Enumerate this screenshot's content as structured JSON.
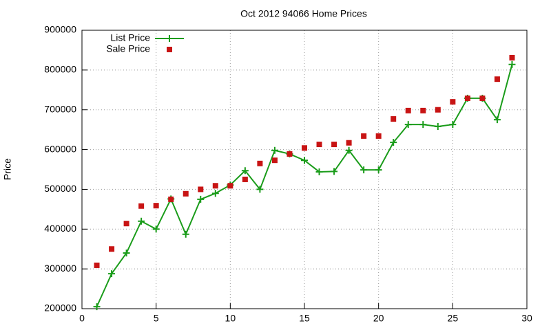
{
  "chart_data": {
    "type": "line",
    "title": "Oct 2012 94066 Home Prices",
    "y_label": "Price",
    "x": [
      1,
      2,
      3,
      4,
      5,
      6,
      7,
      8,
      9,
      10,
      11,
      12,
      13,
      14,
      15,
      16,
      17,
      18,
      19,
      20,
      21,
      22,
      23,
      24,
      25,
      26,
      27,
      28,
      29
    ],
    "series": [
      {
        "name": "List Price",
        "color": "#1a9c1a",
        "style": "linespoints",
        "values": [
          205000,
          288000,
          340000,
          420000,
          400000,
          476000,
          387000,
          475000,
          490000,
          511000,
          547000,
          500000,
          598000,
          589000,
          573000,
          544000,
          545000,
          598000,
          549000,
          549000,
          618000,
          663000,
          663000,
          658000,
          663000,
          729000,
          729000,
          675000,
          814000
        ]
      },
      {
        "name": "Sale Price",
        "color": "#c81414",
        "style": "points",
        "values": [
          309000,
          350000,
          414000,
          458000,
          459000,
          475000,
          489000,
          500000,
          509000,
          509000,
          525000,
          565000,
          573000,
          589000,
          604000,
          613000,
          613000,
          617000,
          634000,
          634000,
          677000,
          698000,
          698000,
          700000,
          720000,
          729000,
          729000,
          777000,
          831000
        ]
      }
    ],
    "xlim": [
      0,
      30
    ],
    "xticks": [
      0,
      5,
      10,
      15,
      20,
      25,
      30
    ],
    "ylim": [
      200000,
      900000
    ],
    "yticks": [
      200000,
      300000,
      400000,
      500000,
      600000,
      700000,
      800000,
      900000
    ],
    "grid": true,
    "legend": "top-left"
  }
}
